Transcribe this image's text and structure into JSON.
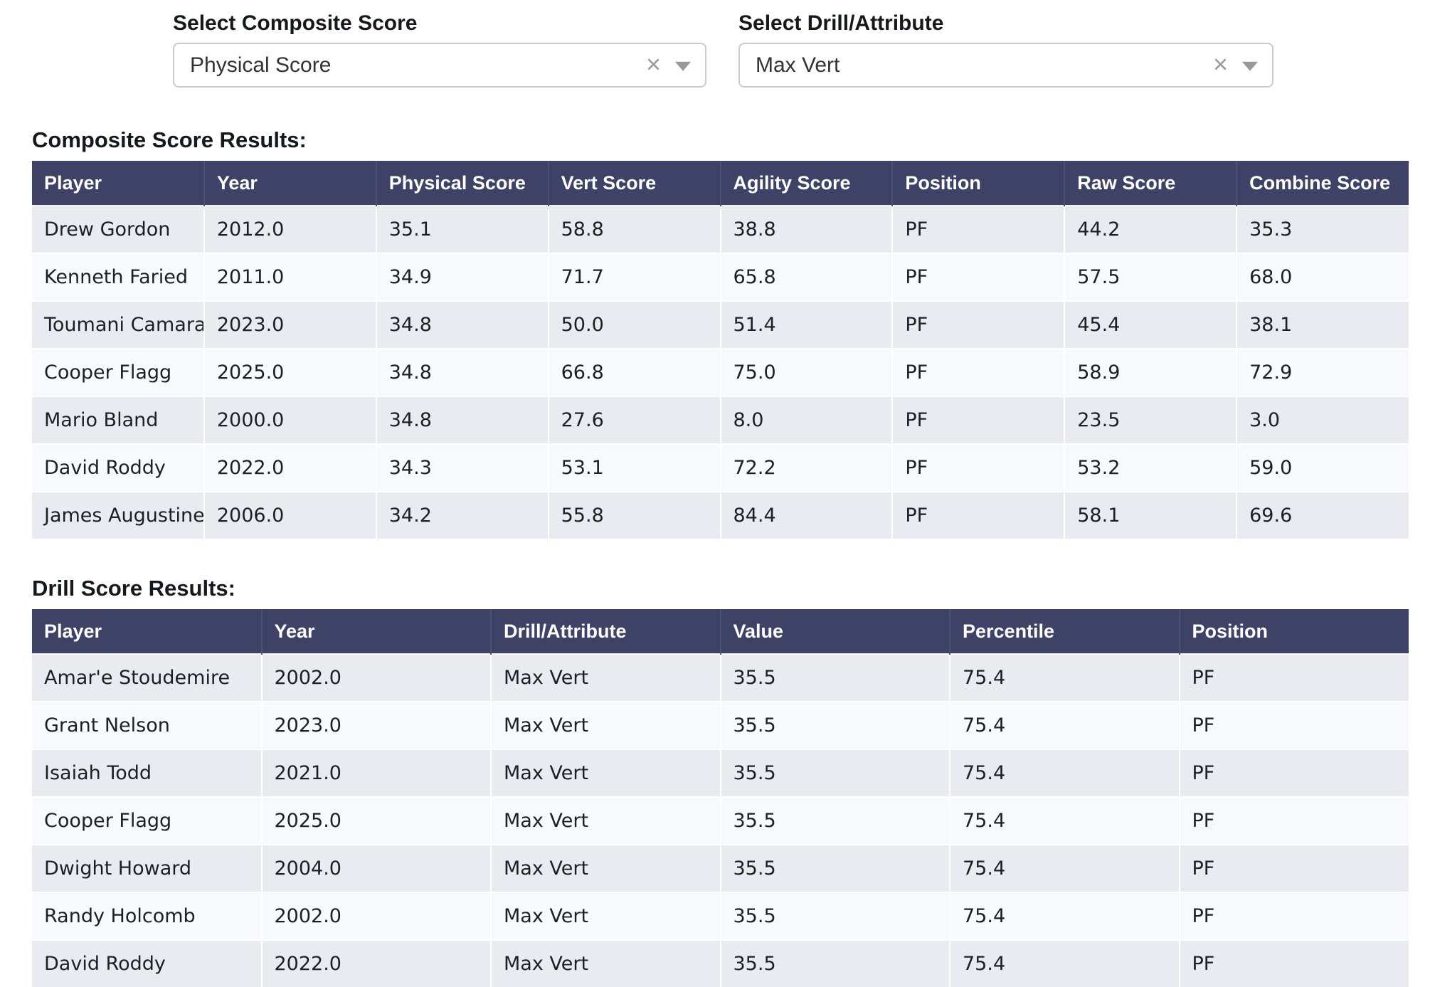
{
  "controls": {
    "composite": {
      "label": "Select Composite Score",
      "value": "Physical Score"
    },
    "drill": {
      "label": "Select Drill/Attribute",
      "value": "Max Vert"
    }
  },
  "icons": {
    "clear": "×",
    "caret": "chevron-down"
  },
  "composite_table": {
    "title": "Composite Score Results:",
    "columns": [
      "Player",
      "Year",
      "Physical Score",
      "Vert Score",
      "Agility Score",
      "Position",
      "Raw Score",
      "Combine Score"
    ],
    "rows": [
      [
        "Drew Gordon",
        "2012.0",
        "35.1",
        "58.8",
        "38.8",
        "PF",
        "44.2",
        "35.3"
      ],
      [
        "Kenneth Faried",
        "2011.0",
        "34.9",
        "71.7",
        "65.8",
        "PF",
        "57.5",
        "68.0"
      ],
      [
        "Toumani Camara",
        "2023.0",
        "34.8",
        "50.0",
        "51.4",
        "PF",
        "45.4",
        "38.1"
      ],
      [
        "Cooper Flagg",
        "2025.0",
        "34.8",
        "66.8",
        "75.0",
        "PF",
        "58.9",
        "72.9"
      ],
      [
        "Mario Bland",
        "2000.0",
        "34.8",
        "27.6",
        "8.0",
        "PF",
        "23.5",
        "3.0"
      ],
      [
        "David Roddy",
        "2022.0",
        "34.3",
        "53.1",
        "72.2",
        "PF",
        "53.2",
        "59.0"
      ],
      [
        "James Augustine",
        "2006.0",
        "34.2",
        "55.8",
        "84.4",
        "PF",
        "58.1",
        "69.6"
      ]
    ]
  },
  "drill_table": {
    "title": "Drill Score Results:",
    "columns": [
      "Player",
      "Year",
      "Drill/Attribute",
      "Value",
      "Percentile",
      "Position"
    ],
    "rows": [
      [
        "Amar'e Stoudemire",
        "2002.0",
        "Max Vert",
        "35.5",
        "75.4",
        "PF"
      ],
      [
        "Grant Nelson",
        "2023.0",
        "Max Vert",
        "35.5",
        "75.4",
        "PF"
      ],
      [
        "Isaiah Todd",
        "2021.0",
        "Max Vert",
        "35.5",
        "75.4",
        "PF"
      ],
      [
        "Cooper Flagg",
        "2025.0",
        "Max Vert",
        "35.5",
        "75.4",
        "PF"
      ],
      [
        "Dwight Howard",
        "2004.0",
        "Max Vert",
        "35.5",
        "75.4",
        "PF"
      ],
      [
        "Randy Holcomb",
        "2002.0",
        "Max Vert",
        "35.5",
        "75.4",
        "PF"
      ],
      [
        "David Roddy",
        "2022.0",
        "Max Vert",
        "35.5",
        "75.4",
        "PF"
      ]
    ]
  },
  "colors": {
    "table_header_bg": "#3d4266",
    "row_stripe_odd": "#eaebf0",
    "row_stripe_even": "#f8f9fc",
    "dropdown_border": "#cbcbcb",
    "icon_gray": "#999999"
  }
}
